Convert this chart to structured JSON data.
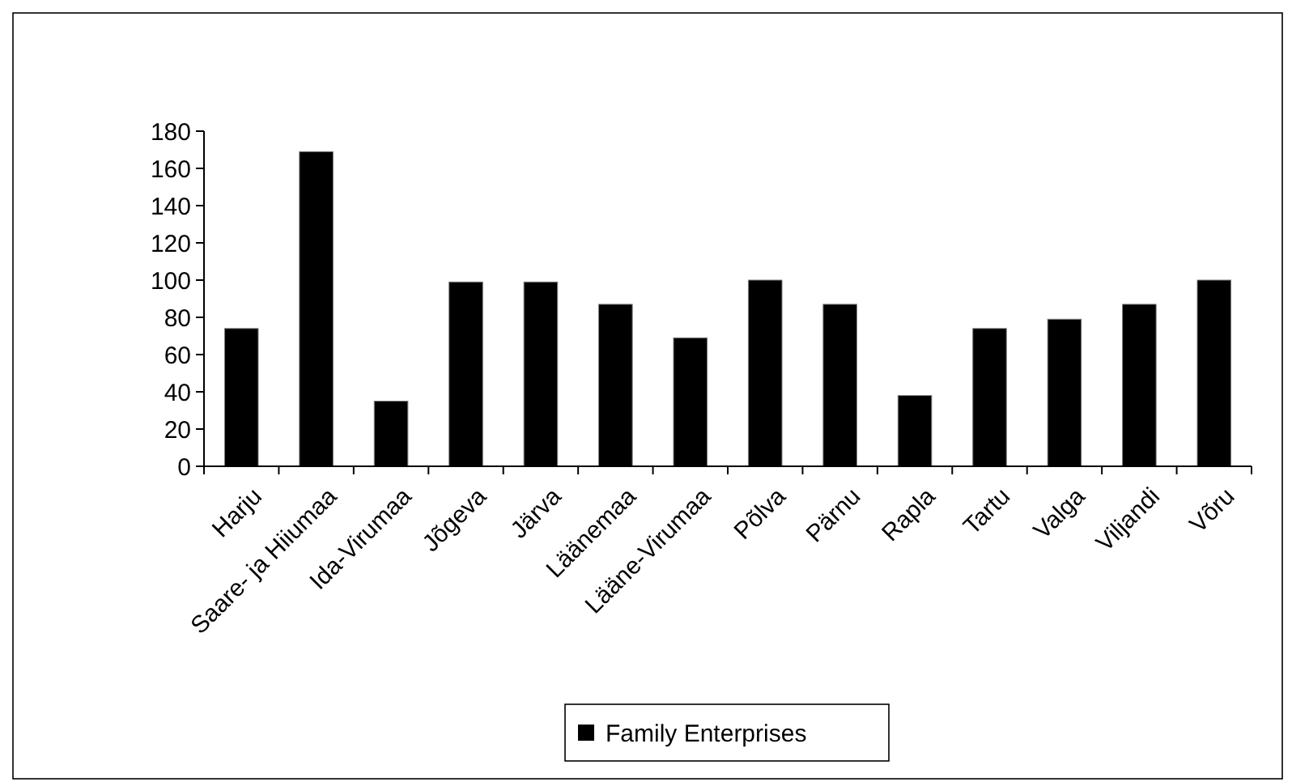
{
  "chart_data": {
    "type": "bar",
    "categories": [
      "Harju",
      "Saare- ja Hiiumaa",
      "Ida-Virumaa",
      "Jõgeva",
      "Järva",
      "Läänemaa",
      "Lääne-Virumaa",
      "Põlva",
      "Pärnu",
      "Rapla",
      "Tartu",
      "Valga",
      "Viljandi",
      "Võru"
    ],
    "series": [
      {
        "name": "Family Enterprises",
        "color": "#000000",
        "values": [
          74,
          169,
          35,
          99,
          99,
          87,
          69,
          100,
          87,
          38,
          74,
          79,
          87,
          100
        ]
      }
    ],
    "ylim": [
      0,
      180
    ],
    "yticks": [
      0,
      20,
      40,
      60,
      80,
      100,
      120,
      140,
      160,
      180
    ],
    "grid": false,
    "legend": "bottom"
  }
}
